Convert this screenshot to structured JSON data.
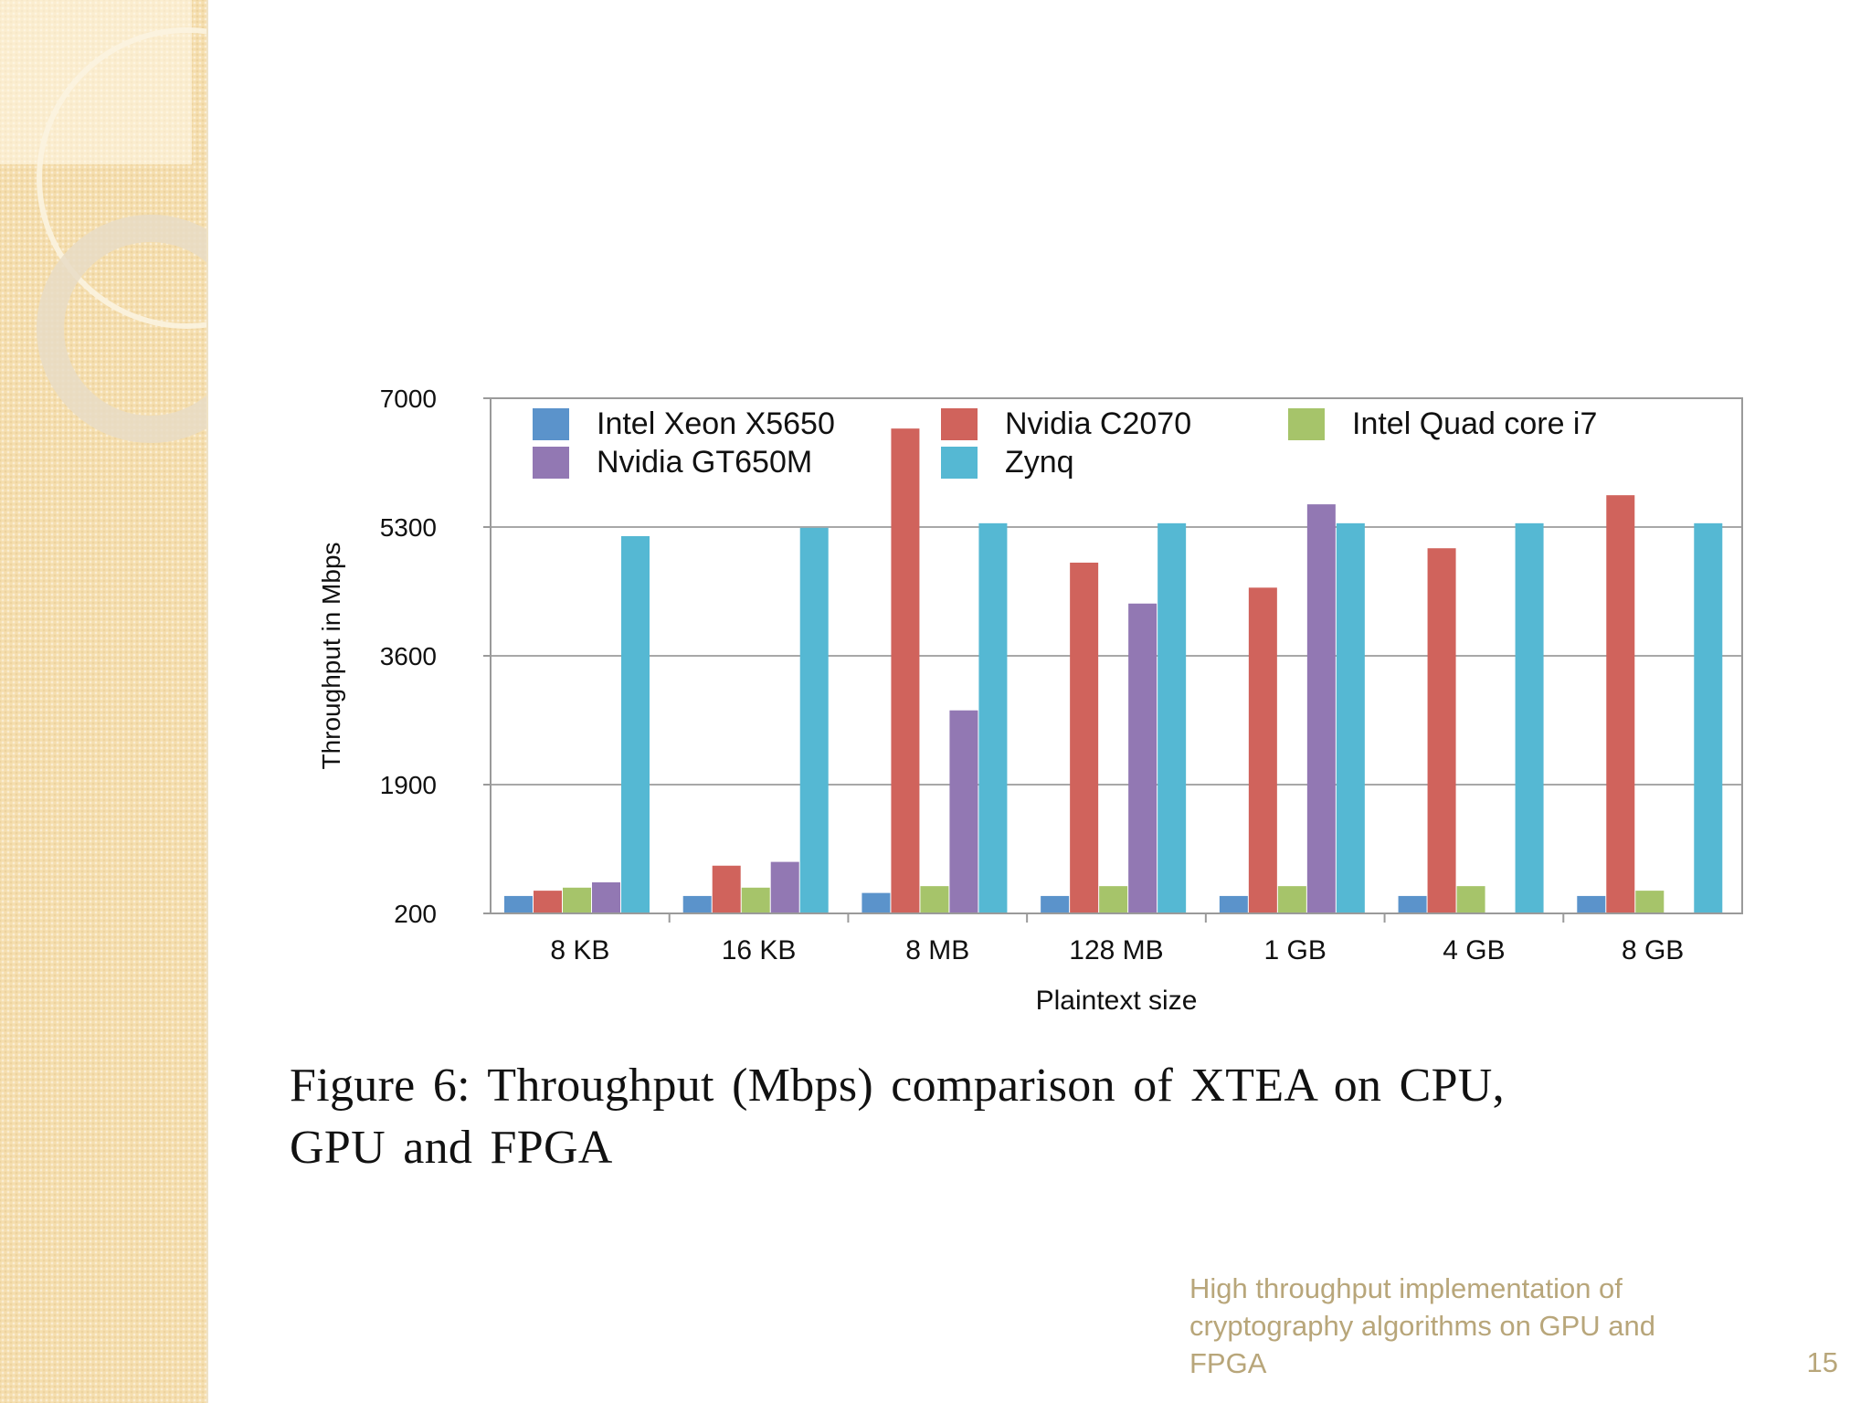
{
  "chart_data": {
    "type": "bar",
    "title": "",
    "xlabel": "Plaintext size",
    "ylabel": "Throughput in Mbps",
    "ylim": [
      200,
      7000
    ],
    "yticks": [
      "200",
      "1900",
      "3600",
      "5300",
      "7000"
    ],
    "yticks_values": [
      200,
      1900,
      3600,
      5300,
      7000
    ],
    "grid": true,
    "legend_position": "top",
    "categories": [
      "8 KB",
      "16 KB",
      "8 MB",
      "128 MB",
      "1 GB",
      "4 GB",
      "8 GB"
    ],
    "series": [
      {
        "name": "Intel Xeon X5650",
        "color": "#5b93cb",
        "values": [
          430,
          430,
          470,
          430,
          430,
          430,
          430
        ]
      },
      {
        "name": "Nvidia C2070",
        "color": "#d0635c",
        "values": [
          500,
          830,
          6600,
          4830,
          4500,
          5020,
          5720
        ]
      },
      {
        "name": "Intel Quad core i7",
        "color": "#a6c46a",
        "values": [
          540,
          540,
          560,
          560,
          560,
          560,
          500
        ]
      },
      {
        "name": "Nvidia GT650M",
        "color": "#9278b3",
        "values": [
          610,
          880,
          2880,
          4290,
          5600,
          null,
          null
        ]
      },
      {
        "name": "Zynq",
        "color": "#55b8d3",
        "values": [
          5180,
          5290,
          5350,
          5350,
          5350,
          5350,
          5350
        ]
      }
    ]
  },
  "caption": {
    "line1": "Figure 6: Throughput (Mbps) comparison of XTEA on CPU,",
    "line2": "GPU and FPGA"
  },
  "footer": {
    "line1": "High throughput implementation of",
    "line2": "cryptography algorithms on GPU and",
    "line3": "FPGA",
    "slide_number": "15"
  }
}
